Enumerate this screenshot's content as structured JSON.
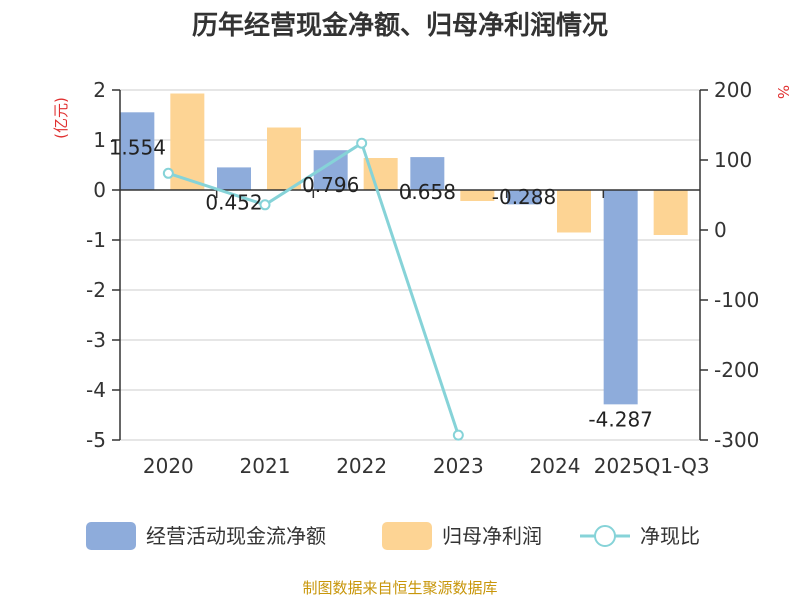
{
  "chart_data": {
    "type": "bar",
    "title": "历年经营现金净额、归母净利润情况",
    "categories": [
      "2020",
      "2021",
      "2022",
      "2023",
      "2024",
      "2025Q1-Q3"
    ],
    "left_axis_unit": "(亿元)",
    "right_axis_unit": "%",
    "ylim_left": [
      -5,
      2
    ],
    "ylim_right": [
      -300,
      200
    ],
    "left_ticks": [
      "2",
      "1",
      "0",
      "-1",
      "-2",
      "-3",
      "-4",
      "-5"
    ],
    "right_ticks": [
      "200",
      "100",
      "0",
      "-100",
      "-200",
      "-300"
    ],
    "grid": true,
    "legend_position": "bottom",
    "series": [
      {
        "name": "经营活动现金流净额",
        "type": "bar",
        "axis": "left",
        "color": "#8eacdb",
        "values": [
          1.554,
          0.452,
          0.796,
          0.658,
          -0.288,
          -4.287
        ],
        "labels": [
          "1.554",
          "0.452",
          "0.796",
          "0.658",
          "-0.288",
          "-4.287"
        ]
      },
      {
        "name": "归母净利润",
        "type": "bar",
        "axis": "left",
        "color": "#fdd494",
        "values": [
          1.93,
          1.25,
          0.64,
          -0.22,
          -0.85,
          -0.9
        ]
      },
      {
        "name": "净现比",
        "type": "line",
        "axis": "right",
        "color": "#86d3d8",
        "values": [
          81,
          36,
          124,
          -293,
          null,
          null
        ]
      }
    ],
    "source": "制图数据来自恒生聚源数据库"
  }
}
